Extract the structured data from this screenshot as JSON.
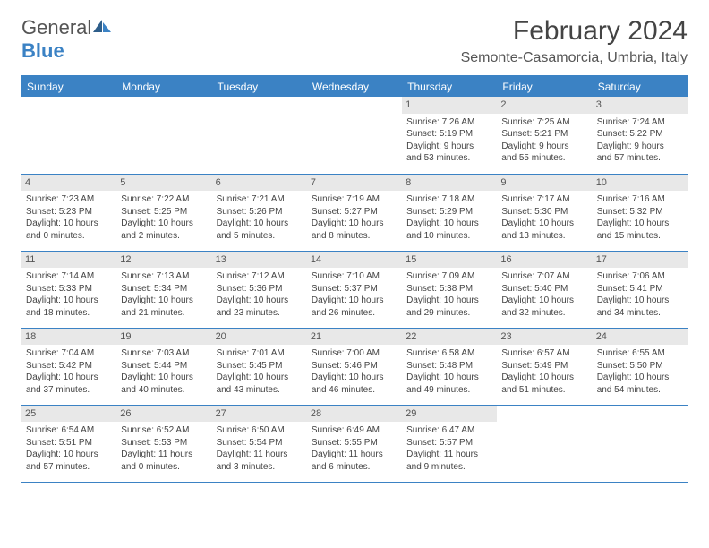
{
  "logo": {
    "text1": "General",
    "text2": "Blue"
  },
  "title": "February 2024",
  "subtitle": "Semonte-Casamorcia, Umbria, Italy",
  "colors": {
    "brand": "#3b82c4",
    "header_bg": "#3b82c4",
    "header_text": "#ffffff",
    "daynum_bg": "#e8e8e8",
    "text": "#444444",
    "background": "#ffffff"
  },
  "day_headers": [
    "Sunday",
    "Monday",
    "Tuesday",
    "Wednesday",
    "Thursday",
    "Friday",
    "Saturday"
  ],
  "weeks": [
    [
      null,
      null,
      null,
      null,
      {
        "n": "1",
        "sr": "Sunrise: 7:26 AM",
        "ss": "Sunset: 5:19 PM",
        "dl1": "Daylight: 9 hours",
        "dl2": "and 53 minutes."
      },
      {
        "n": "2",
        "sr": "Sunrise: 7:25 AM",
        "ss": "Sunset: 5:21 PM",
        "dl1": "Daylight: 9 hours",
        "dl2": "and 55 minutes."
      },
      {
        "n": "3",
        "sr": "Sunrise: 7:24 AM",
        "ss": "Sunset: 5:22 PM",
        "dl1": "Daylight: 9 hours",
        "dl2": "and 57 minutes."
      }
    ],
    [
      {
        "n": "4",
        "sr": "Sunrise: 7:23 AM",
        "ss": "Sunset: 5:23 PM",
        "dl1": "Daylight: 10 hours",
        "dl2": "and 0 minutes."
      },
      {
        "n": "5",
        "sr": "Sunrise: 7:22 AM",
        "ss": "Sunset: 5:25 PM",
        "dl1": "Daylight: 10 hours",
        "dl2": "and 2 minutes."
      },
      {
        "n": "6",
        "sr": "Sunrise: 7:21 AM",
        "ss": "Sunset: 5:26 PM",
        "dl1": "Daylight: 10 hours",
        "dl2": "and 5 minutes."
      },
      {
        "n": "7",
        "sr": "Sunrise: 7:19 AM",
        "ss": "Sunset: 5:27 PM",
        "dl1": "Daylight: 10 hours",
        "dl2": "and 8 minutes."
      },
      {
        "n": "8",
        "sr": "Sunrise: 7:18 AM",
        "ss": "Sunset: 5:29 PM",
        "dl1": "Daylight: 10 hours",
        "dl2": "and 10 minutes."
      },
      {
        "n": "9",
        "sr": "Sunrise: 7:17 AM",
        "ss": "Sunset: 5:30 PM",
        "dl1": "Daylight: 10 hours",
        "dl2": "and 13 minutes."
      },
      {
        "n": "10",
        "sr": "Sunrise: 7:16 AM",
        "ss": "Sunset: 5:32 PM",
        "dl1": "Daylight: 10 hours",
        "dl2": "and 15 minutes."
      }
    ],
    [
      {
        "n": "11",
        "sr": "Sunrise: 7:14 AM",
        "ss": "Sunset: 5:33 PM",
        "dl1": "Daylight: 10 hours",
        "dl2": "and 18 minutes."
      },
      {
        "n": "12",
        "sr": "Sunrise: 7:13 AM",
        "ss": "Sunset: 5:34 PM",
        "dl1": "Daylight: 10 hours",
        "dl2": "and 21 minutes."
      },
      {
        "n": "13",
        "sr": "Sunrise: 7:12 AM",
        "ss": "Sunset: 5:36 PM",
        "dl1": "Daylight: 10 hours",
        "dl2": "and 23 minutes."
      },
      {
        "n": "14",
        "sr": "Sunrise: 7:10 AM",
        "ss": "Sunset: 5:37 PM",
        "dl1": "Daylight: 10 hours",
        "dl2": "and 26 minutes."
      },
      {
        "n": "15",
        "sr": "Sunrise: 7:09 AM",
        "ss": "Sunset: 5:38 PM",
        "dl1": "Daylight: 10 hours",
        "dl2": "and 29 minutes."
      },
      {
        "n": "16",
        "sr": "Sunrise: 7:07 AM",
        "ss": "Sunset: 5:40 PM",
        "dl1": "Daylight: 10 hours",
        "dl2": "and 32 minutes."
      },
      {
        "n": "17",
        "sr": "Sunrise: 7:06 AM",
        "ss": "Sunset: 5:41 PM",
        "dl1": "Daylight: 10 hours",
        "dl2": "and 34 minutes."
      }
    ],
    [
      {
        "n": "18",
        "sr": "Sunrise: 7:04 AM",
        "ss": "Sunset: 5:42 PM",
        "dl1": "Daylight: 10 hours",
        "dl2": "and 37 minutes."
      },
      {
        "n": "19",
        "sr": "Sunrise: 7:03 AM",
        "ss": "Sunset: 5:44 PM",
        "dl1": "Daylight: 10 hours",
        "dl2": "and 40 minutes."
      },
      {
        "n": "20",
        "sr": "Sunrise: 7:01 AM",
        "ss": "Sunset: 5:45 PM",
        "dl1": "Daylight: 10 hours",
        "dl2": "and 43 minutes."
      },
      {
        "n": "21",
        "sr": "Sunrise: 7:00 AM",
        "ss": "Sunset: 5:46 PM",
        "dl1": "Daylight: 10 hours",
        "dl2": "and 46 minutes."
      },
      {
        "n": "22",
        "sr": "Sunrise: 6:58 AM",
        "ss": "Sunset: 5:48 PM",
        "dl1": "Daylight: 10 hours",
        "dl2": "and 49 minutes."
      },
      {
        "n": "23",
        "sr": "Sunrise: 6:57 AM",
        "ss": "Sunset: 5:49 PM",
        "dl1": "Daylight: 10 hours",
        "dl2": "and 51 minutes."
      },
      {
        "n": "24",
        "sr": "Sunrise: 6:55 AM",
        "ss": "Sunset: 5:50 PM",
        "dl1": "Daylight: 10 hours",
        "dl2": "and 54 minutes."
      }
    ],
    [
      {
        "n": "25",
        "sr": "Sunrise: 6:54 AM",
        "ss": "Sunset: 5:51 PM",
        "dl1": "Daylight: 10 hours",
        "dl2": "and 57 minutes."
      },
      {
        "n": "26",
        "sr": "Sunrise: 6:52 AM",
        "ss": "Sunset: 5:53 PM",
        "dl1": "Daylight: 11 hours",
        "dl2": "and 0 minutes."
      },
      {
        "n": "27",
        "sr": "Sunrise: 6:50 AM",
        "ss": "Sunset: 5:54 PM",
        "dl1": "Daylight: 11 hours",
        "dl2": "and 3 minutes."
      },
      {
        "n": "28",
        "sr": "Sunrise: 6:49 AM",
        "ss": "Sunset: 5:55 PM",
        "dl1": "Daylight: 11 hours",
        "dl2": "and 6 minutes."
      },
      {
        "n": "29",
        "sr": "Sunrise: 6:47 AM",
        "ss": "Sunset: 5:57 PM",
        "dl1": "Daylight: 11 hours",
        "dl2": "and 9 minutes."
      },
      null,
      null
    ]
  ]
}
